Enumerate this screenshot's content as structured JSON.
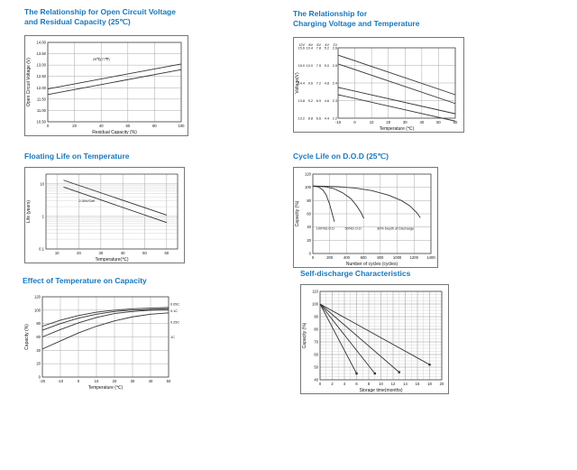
{
  "page": {
    "background": "#ffffff",
    "title_color": "#1778be"
  },
  "chart_data": [
    {
      "type": "line",
      "title": "The Relationship for Open Circuit Voltage and Residual Capacity (25℃)",
      "title_lines": [
        "The Relationship for Open Circuit Voltage",
        "and Residual Capacity (25℃)"
      ],
      "xlabel": "Residual Capacity (%)",
      "ylabel": "Open Circuit Voltage (V)",
      "xlim": [
        0,
        100
      ],
      "ylim": [
        10.5,
        14
      ],
      "xticks": [
        0,
        20,
        40,
        60,
        80,
        100
      ],
      "yticks": [
        10.5,
        11,
        11.5,
        12,
        12.5,
        13,
        13.5,
        14
      ],
      "ytick_labels": [
        "10.50",
        "11.00",
        "11.50",
        "12.00",
        "12.50",
        "13.00",
        "13.50",
        "14.00"
      ],
      "grid": true,
      "series": [
        {
          "name": "upper-limit",
          "points": [
            [
              0,
              11.95
            ],
            [
              100,
              13.05
            ]
          ]
        },
        {
          "name": "lower-limit",
          "points": [
            [
              0,
              11.7
            ],
            [
              100,
              12.8
            ]
          ]
        }
      ],
      "annotations": [
        {
          "x": 40,
          "y": 13.2,
          "text": "25℃(77℉)",
          "anchor": "middle"
        }
      ]
    },
    {
      "type": "line",
      "title": "The Relationship for Charging Voltage and Temperature",
      "title_lines": [
        "The Relationship for",
        "Charging Voltage and Temperature"
      ],
      "xlabel": "Temperature (℃)",
      "ylabel": "Voltage(V)",
      "xlim": [
        -10,
        60
      ],
      "ylim": [
        13.2,
        15.6
      ],
      "xticks": [
        -10,
        0,
        10,
        20,
        30,
        40,
        50,
        60
      ],
      "yticks": [
        13.2,
        13.8,
        14.4,
        15,
        15.6
      ],
      "ytick_header": [
        "12V",
        "8V",
        "6V",
        "4V",
        "2V"
      ],
      "ytick_columns": [
        [
          "13.2",
          "8.8",
          "6.6",
          "4.4",
          "2.2"
        ],
        [
          "13.8",
          "9.2",
          "6.9",
          "4.6",
          "2.3"
        ],
        [
          "14.4",
          "9.6",
          "7.2",
          "4.8",
          "2.4"
        ],
        [
          "15.0",
          "10.0",
          "7.5",
          "5.0",
          "2.5"
        ],
        [
          "15.6",
          "10.4",
          "7.8",
          "5.2",
          "2.6"
        ]
      ],
      "grid": true,
      "series": [
        {
          "name": "cycle-use-upper",
          "points": [
            [
              -10,
              15.35
            ],
            [
              60,
              14.0
            ]
          ]
        },
        {
          "name": "cycle-use-lower",
          "points": [
            [
              -10,
              15.05
            ],
            [
              60,
              13.7
            ]
          ]
        },
        {
          "name": "standby-use-upper",
          "points": [
            [
              -10,
              14.25
            ],
            [
              60,
              13.35
            ]
          ]
        },
        {
          "name": "standby-use-lower",
          "points": [
            [
              -10,
              14.0
            ],
            [
              60,
              13.1
            ]
          ]
        }
      ]
    },
    {
      "type": "line",
      "title": "Floating Life on Temperature",
      "title_lines": [
        "Floating Life on Temperature"
      ],
      "xlabel": "Temperature(℃)",
      "ylabel": "Life (years)",
      "xlim": [
        5,
        65
      ],
      "ylim": [
        0.1,
        20
      ],
      "yscale": "log",
      "xticks": [
        10,
        20,
        30,
        40,
        50,
        60
      ],
      "yticks": [
        0.1,
        1,
        10
      ],
      "ytick_labels": [
        "0.1",
        "1",
        "10"
      ],
      "yminor": [
        0.2,
        0.3,
        0.4,
        0.5,
        0.6,
        0.7,
        0.8,
        0.9,
        2,
        3,
        4,
        5,
        6,
        7,
        8,
        9
      ],
      "grid": true,
      "series": [
        {
          "name": "upper-band",
          "points": [
            [
              13,
              13
            ],
            [
              60,
              1.1
            ]
          ]
        },
        {
          "name": "lower-band",
          "points": [
            [
              13,
              8
            ],
            [
              60,
              0.65
            ]
          ]
        }
      ],
      "annotations": [
        {
          "x": 20,
          "y": 2.8,
          "text": "2.30V/Cell",
          "anchor": "start"
        }
      ]
    },
    {
      "type": "line",
      "title": "Cycle Life on D.O.D (25℃)",
      "title_lines": [
        "Cycle Life on D.O.D (25℃)"
      ],
      "xlabel": "Number of cycles (cycles)",
      "ylabel": "Capacity (%)",
      "xlim": [
        0,
        1400
      ],
      "ylim": [
        0,
        120
      ],
      "xticks": [
        0,
        200,
        400,
        600,
        800,
        1000,
        1200,
        1400
      ],
      "yticks": [
        0,
        20,
        40,
        60,
        80,
        100,
        120
      ],
      "grid": true,
      "series": [
        {
          "name": "100-percent-dod",
          "points": [
            [
              0,
              102
            ],
            [
              60,
              101
            ],
            [
              120,
              96
            ],
            [
              160,
              88
            ],
            [
              200,
              74
            ],
            [
              230,
              60
            ],
            [
              255,
              48
            ]
          ]
        },
        {
          "name": "50-percent-dod",
          "points": [
            [
              0,
              102
            ],
            [
              150,
              101
            ],
            [
              250,
              98
            ],
            [
              350,
              92
            ],
            [
              450,
              83
            ],
            [
              520,
              72
            ],
            [
              570,
              62
            ],
            [
              605,
              53
            ]
          ]
        },
        {
          "name": "30-percent-dod",
          "points": [
            [
              0,
              102
            ],
            [
              300,
              101
            ],
            [
              500,
              99
            ],
            [
              700,
              95
            ],
            [
              900,
              88
            ],
            [
              1050,
              80
            ],
            [
              1150,
              72
            ],
            [
              1230,
              62
            ],
            [
              1275,
              54
            ]
          ]
        }
      ],
      "annotations": [
        {
          "x": 40,
          "y": 36,
          "text": "100%D.O.D",
          "anchor": "start"
        },
        {
          "x": 380,
          "y": 36,
          "text": "50%D.O.D",
          "anchor": "start"
        },
        {
          "x": 760,
          "y": 36,
          "text": "30% Depth of Discharge",
          "anchor": "start"
        }
      ]
    },
    {
      "type": "line",
      "title": "Effect of Temperature on Capacity",
      "title_lines": [
        "Effect of Temperature on Capacity"
      ],
      "xlabel": "Temperature (℃)",
      "ylabel": "Capacity (%)",
      "xlim": [
        -20,
        50
      ],
      "ylim": [
        0,
        120
      ],
      "xticks": [
        -20,
        -10,
        0,
        10,
        20,
        30,
        40,
        50
      ],
      "yticks": [
        0,
        20,
        40,
        60,
        80,
        100,
        120
      ],
      "grid": true,
      "series": [
        {
          "name": "0.05C",
          "points": [
            [
              -20,
              76
            ],
            [
              -10,
              85
            ],
            [
              0,
              92
            ],
            [
              10,
              97
            ],
            [
              20,
              100
            ],
            [
              30,
              102
            ],
            [
              40,
              103
            ],
            [
              50,
              104
            ]
          ]
        },
        {
          "name": "0.1C",
          "points": [
            [
              -20,
              70
            ],
            [
              -10,
              80
            ],
            [
              0,
              88
            ],
            [
              10,
              94
            ],
            [
              20,
              98
            ],
            [
              30,
              100
            ],
            [
              40,
              101
            ],
            [
              50,
              102
            ]
          ]
        },
        {
          "name": "0.25C",
          "points": [
            [
              -20,
              60
            ],
            [
              -10,
              71
            ],
            [
              0,
              81
            ],
            [
              10,
              89
            ],
            [
              20,
              95
            ],
            [
              30,
              98
            ],
            [
              40,
              100
            ],
            [
              50,
              100
            ]
          ]
        },
        {
          "name": "1C",
          "points": [
            [
              -20,
              42
            ],
            [
              -10,
              54
            ],
            [
              0,
              66
            ],
            [
              10,
              76
            ],
            [
              20,
              84
            ],
            [
              30,
              90
            ],
            [
              40,
              94
            ],
            [
              50,
              96
            ]
          ]
        }
      ],
      "annotations": [
        {
          "x": 51,
          "y": 107,
          "text": "0.05C",
          "anchor": "start"
        },
        {
          "x": 51,
          "y": 97,
          "text": "0.1C",
          "anchor": "start"
        },
        {
          "x": 51,
          "y": 80,
          "text": "0.25C",
          "anchor": "start"
        },
        {
          "x": 51,
          "y": 58,
          "text": "1C",
          "anchor": "start"
        }
      ]
    },
    {
      "type": "line",
      "title": "Self-discharge Characteristics",
      "title_lines": [
        "Self-discharge Characteristics"
      ],
      "xlabel": "Storage time(months)",
      "ylabel": "Capacity (%)",
      "xlim": [
        0,
        20
      ],
      "ylim": [
        40,
        110
      ],
      "xticks": [
        0,
        2,
        4,
        6,
        8,
        10,
        12,
        14,
        16,
        18,
        20
      ],
      "yticks": [
        40,
        50,
        60,
        70,
        80,
        90,
        100,
        110
      ],
      "minor_grid": {
        "x_step": 1,
        "y_step": 2.5
      },
      "grid": true,
      "series": [
        {
          "name": "line-1",
          "points": [
            [
              0,
              100
            ],
            [
              6,
              45
            ]
          ],
          "marker": true
        },
        {
          "name": "line-2",
          "points": [
            [
              0,
              100
            ],
            [
              9,
              45
            ]
          ],
          "marker": true
        },
        {
          "name": "line-3",
          "points": [
            [
              0,
              100
            ],
            [
              13,
              46
            ]
          ],
          "marker": true
        },
        {
          "name": "line-4",
          "points": [
            [
              0,
              100
            ],
            [
              18,
              52
            ]
          ],
          "marker": true
        }
      ]
    }
  ]
}
